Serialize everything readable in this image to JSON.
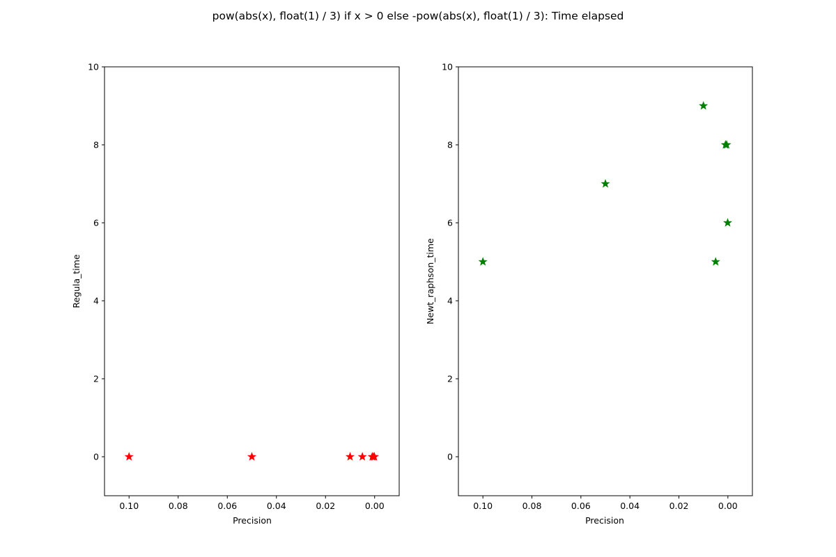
{
  "figure": {
    "title": "pow(abs(x), float(1) / 3) if x > 0 else -pow(abs(x), float(1) / 3): Time elapsed"
  },
  "chart_data": [
    {
      "type": "scatter",
      "xlabel": "Precision",
      "ylabel": "Regula_time",
      "xlim": [
        0.11,
        -0.01
      ],
      "ylim": [
        -1,
        10
      ],
      "x_inverted": true,
      "xticks": [
        "0.10",
        "0.08",
        "0.06",
        "0.04",
        "0.02",
        "0.00"
      ],
      "xtick_values": [
        0.1,
        0.08,
        0.06,
        0.04,
        0.02,
        0.0
      ],
      "yticks": [
        "0",
        "2",
        "4",
        "6",
        "8",
        "10"
      ],
      "ytick_values": [
        0,
        2,
        4,
        6,
        8,
        10
      ],
      "marker": "star",
      "color": "#ff0000",
      "grid": false,
      "x": [
        0.1,
        0.05,
        0.01,
        0.005,
        0.001,
        0.0005,
        0.0001
      ],
      "y": [
        0,
        0,
        0,
        0,
        0,
        0,
        0
      ]
    },
    {
      "type": "scatter",
      "xlabel": "Precision",
      "ylabel": "Newt_raphson_time",
      "xlim": [
        0.11,
        -0.01
      ],
      "ylim": [
        -1,
        10
      ],
      "x_inverted": true,
      "xticks": [
        "0.10",
        "0.08",
        "0.06",
        "0.04",
        "0.02",
        "0.00"
      ],
      "xtick_values": [
        0.1,
        0.08,
        0.06,
        0.04,
        0.02,
        0.0
      ],
      "yticks": [
        "0",
        "2",
        "4",
        "6",
        "8",
        "10"
      ],
      "ytick_values": [
        0,
        2,
        4,
        6,
        8,
        10
      ],
      "marker": "star",
      "color": "#008000",
      "grid": false,
      "x": [
        0.1,
        0.05,
        0.01,
        0.005,
        0.001,
        0.0005,
        0.0001
      ],
      "y": [
        5,
        7,
        9,
        5,
        8,
        8,
        6
      ]
    }
  ]
}
